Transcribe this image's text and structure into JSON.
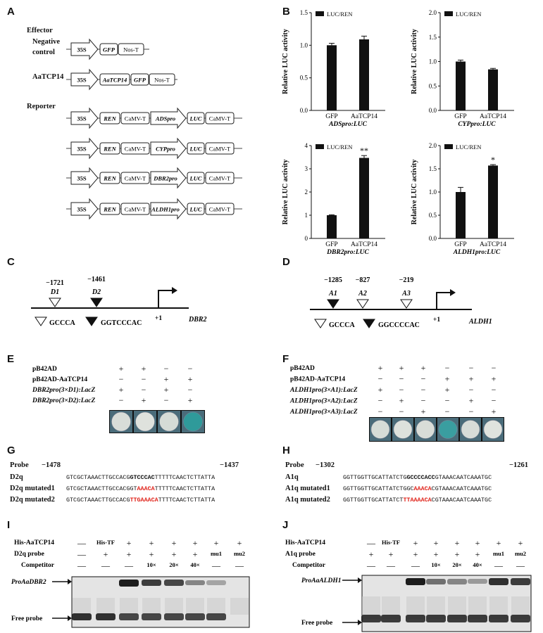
{
  "panel_labels": {
    "A": "A",
    "B": "B",
    "C": "C",
    "D": "D",
    "E": "E",
    "F": "F",
    "G": "G",
    "H": "H",
    "I": "I",
    "J": "J"
  },
  "panelA": {
    "effector_label": "Effector",
    "negative_control_label": "Negative\ncontrol",
    "aatcp14_label": "AaTCP14",
    "reporter_label": "Reporter",
    "parts": {
      "p35s": "35S",
      "gfp": "GFP",
      "nost": "Nos-T",
      "aatcp14": "AaTCP14",
      "ren": "REN",
      "camvt": "CaMV-T",
      "luc": "LUC",
      "adspro": "ADSpro",
      "cyppro": "CYPpro",
      "dbr2pro": "DBR2pro",
      "aldh1pro": "ALDH1pro"
    }
  },
  "panelB": {
    "legend": "LUC/REN",
    "ylabel": "Relative LUC activity",
    "categories": [
      "GFP",
      "AaTCP14"
    ],
    "charts": [
      {
        "title": "ADSpro:LUC",
        "yticks": [
          "0.0",
          "0.5",
          "1.0",
          "1.5"
        ],
        "ymax": 1.5
      },
      {
        "title": "CYPpro:LUC",
        "yticks": [
          "0.0",
          "0.5",
          "1.0",
          "1.5",
          "2.0"
        ],
        "ymax": 2.0
      },
      {
        "title": "DBR2pro:LUC",
        "yticks": [
          "0",
          "1",
          "2",
          "3",
          "4"
        ],
        "ymax": 4
      },
      {
        "title": "ALDH1pro:LUC",
        "yticks": [
          "0.0",
          "0.5",
          "1.0",
          "1.5",
          "2.0"
        ],
        "ymax": 2.0
      }
    ]
  },
  "chart_data": [
    {
      "type": "bar",
      "title": "ADSpro:LUC",
      "categories": [
        "GFP",
        "AaTCP14"
      ],
      "series": [
        {
          "name": "LUC/REN",
          "values": [
            1.0,
            1.09
          ],
          "errors": [
            0.03,
            0.05
          ]
        }
      ],
      "ylabel": "Relative LUC activity",
      "ylim": [
        0,
        1.5
      ],
      "annotations": [
        "",
        ""
      ]
    },
    {
      "type": "bar",
      "title": "CYPpro:LUC",
      "categories": [
        "GFP",
        "AaTCP14"
      ],
      "series": [
        {
          "name": "LUC/REN",
          "values": [
            1.0,
            0.84
          ],
          "errors": [
            0.03,
            0.02
          ]
        }
      ],
      "ylabel": "Relative LUC activity",
      "ylim": [
        0,
        2.0
      ],
      "annotations": [
        "",
        ""
      ]
    },
    {
      "type": "bar",
      "title": "DBR2pro:LUC",
      "categories": [
        "GFP",
        "AaTCP14"
      ],
      "series": [
        {
          "name": "LUC/REN",
          "values": [
            1.0,
            3.47
          ],
          "errors": [
            0.02,
            0.1
          ]
        }
      ],
      "ylabel": "Relative LUC activity",
      "ylim": [
        0,
        4
      ],
      "annotations": [
        "",
        "**"
      ]
    },
    {
      "type": "bar",
      "title": "ALDH1pro:LUC",
      "categories": [
        "GFP",
        "AaTCP14"
      ],
      "series": [
        {
          "name": "LUC/REN",
          "values": [
            1.0,
            1.57
          ],
          "errors": [
            0.1,
            0.02
          ]
        }
      ],
      "ylabel": "Relative LUC activity",
      "ylim": [
        0,
        2.0
      ],
      "annotations": [
        "",
        "*"
      ]
    }
  ],
  "panelC": {
    "d1_pos": "−1721",
    "d2_pos": "−1461",
    "d1": "D1",
    "d2": "D2",
    "tss": "+1",
    "gene": "DBR2",
    "legend_open": "GCCCA",
    "legend_filled": "GGTCCCAC"
  },
  "panelD": {
    "a1_pos": "−1285",
    "a2_pos": "−827",
    "a3_pos": "−219",
    "a1": "A1",
    "a2": "A2",
    "a3": "A3",
    "tss": "+1",
    "gene": "ALDH1",
    "legend_open": "GCCCA",
    "legend_filled": "GGCCCCAC"
  },
  "panelE": {
    "rows": [
      "pB42AD",
      "pB42AD-AaTCP14",
      "DBR2pro(3×D1):LacZ",
      "DBR2pro(3×D2):LacZ"
    ],
    "matrix": [
      [
        "+",
        "+",
        "−",
        "−"
      ],
      [
        "−",
        "−",
        "+",
        "+"
      ],
      [
        "+",
        "−",
        "+",
        "−"
      ],
      [
        "−",
        "+",
        "−",
        "+"
      ]
    ]
  },
  "panelF": {
    "rows": [
      "pB42AD",
      "pB42AD-AaTCP14",
      "ALDH1pro(3×A1):LacZ",
      "ALDH1pro(3×A2):LacZ",
      "ALDH1pro(3×A3):LacZ"
    ],
    "matrix": [
      [
        "+",
        "+",
        "+",
        "−",
        "−",
        "−"
      ],
      [
        "−",
        "−",
        "−",
        "+",
        "+",
        "+"
      ],
      [
        "+",
        "−",
        "−",
        "+",
        "−",
        "−"
      ],
      [
        "−",
        "+",
        "−",
        "−",
        "+",
        "−"
      ],
      [
        "−",
        "−",
        "+",
        "−",
        "−",
        "+"
      ]
    ]
  },
  "panelG": {
    "probe_label": "Probe",
    "start": "−1478",
    "end": "−1437",
    "rows": [
      {
        "name": "D2q",
        "pre": "GTCGCTAAACTTGCCACG",
        "mid": "GTCCCAC",
        "post": "TTTTTCAACTCTTATTA",
        "mid_style": "bold"
      },
      {
        "name": "D2q mutated1",
        "pre": "GTCGCTAAACTTGCCACGGT",
        "mid": "AAACA",
        "post": "TTTTTCAACTCTTATTA",
        "mid_style": "red"
      },
      {
        "name": "D2q mutated2",
        "pre": "GTCGCTAAACTTGCCACG",
        "mid": "TTGAAACA",
        "post": "TTTTCAACTCTTATTA",
        "mid_style": "red"
      }
    ]
  },
  "panelH": {
    "probe_label": "Probe",
    "start": "−1302",
    "end": "−1261",
    "rows": [
      {
        "name": "A1q",
        "pre": "GGTTGGTTGCATTATCTG",
        "mid": "GCCCCACC",
        "post": "GTAAACAATCAAATGC",
        "mid_style": "bold"
      },
      {
        "name": "A1q mutated1",
        "pre": "GGTTGGTTGCATTATCTGGC",
        "mid": "AAACA",
        "post": "CGTAAACAATCAAATGC",
        "mid_style": "red"
      },
      {
        "name": "A1q mutated2",
        "pre": "GGTTGGTTGCATTATCT",
        "mid": "TTAAAACA",
        "post": "CGTAAACAATCAAATGC",
        "mid_style": "red"
      }
    ]
  },
  "panelI": {
    "rows": [
      "His-AaTCP14",
      "D2q probe",
      "Competitor"
    ],
    "lanes": [
      [
        "—",
        "—",
        "—"
      ],
      [
        "His-TF",
        "+",
        "—"
      ],
      [
        "+",
        "+",
        "—"
      ],
      [
        "+",
        "+",
        "10×"
      ],
      [
        "+",
        "+",
        "20×"
      ],
      [
        "+",
        "+",
        "40×"
      ],
      [
        "+",
        "mu1",
        "—"
      ],
      [
        "+",
        "mu2",
        "—"
      ]
    ],
    "complex_label": "ProAaDBR2",
    "free_label": "Free probe"
  },
  "panelJ": {
    "rows": [
      "His-AaTCP14",
      "A1q probe",
      "Competitor"
    ],
    "lanes": [
      [
        "—",
        "+",
        "—"
      ],
      [
        "His-TF",
        "+",
        "—"
      ],
      [
        "+",
        "+",
        "—"
      ],
      [
        "+",
        "+",
        "10×"
      ],
      [
        "+",
        "+",
        "20×"
      ],
      [
        "+",
        "+",
        "40×"
      ],
      [
        "+",
        "mu1",
        "—"
      ],
      [
        "+",
        "mu2",
        "—"
      ]
    ],
    "complex_label": "ProAaALDH1",
    "free_label": "Free probe"
  }
}
